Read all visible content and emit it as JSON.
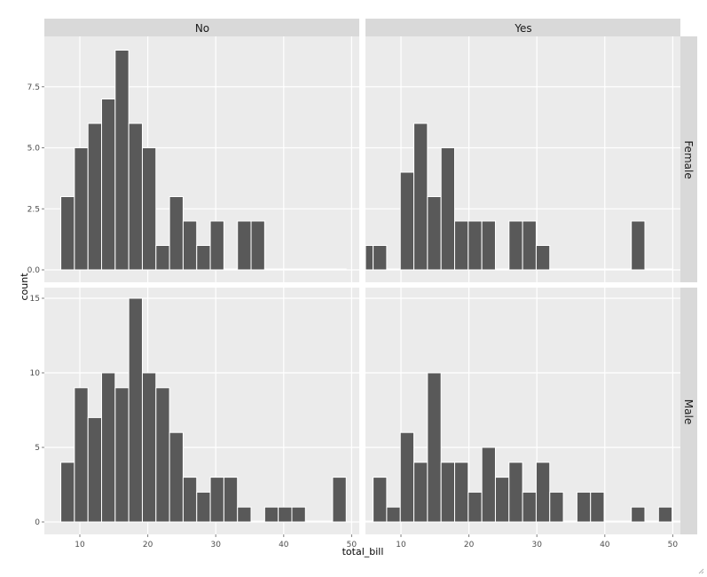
{
  "chart_data": {
    "type": "bar",
    "subtype": "faceted histogram",
    "xlabel": "total_bill",
    "ylabel": "count",
    "column_facet_labels": [
      "No",
      "Yes"
    ],
    "row_facet_labels": [
      "Female",
      "Male"
    ],
    "x_ticks": [
      "10",
      "20",
      "30",
      "40",
      "50"
    ],
    "y_ticks_row_female": [
      "0.0",
      "2.5",
      "5.0",
      "7.5"
    ],
    "y_ticks_row_male": [
      "0",
      "5",
      "10",
      "15"
    ],
    "bar_color": "#595959",
    "panel_background": "#ebebeb",
    "strip_background": "#d9d9d9",
    "grid": true,
    "panels": [
      {
        "col": "No",
        "row": "Female",
        "x": [
          8.2,
          10.2,
          12.2,
          14.2,
          16.2,
          18.2,
          20.2,
          22.2,
          24.2,
          26.2,
          28.2,
          30.2,
          32.2,
          34.2,
          36.2,
          38.2,
          40.2,
          42.2,
          44.2,
          46.2,
          48.2
        ],
        "values": [
          3,
          5,
          6,
          7,
          9,
          6,
          5,
          1,
          3,
          2,
          1,
          2,
          0,
          2,
          2,
          0,
          0,
          0,
          0,
          0,
          0
        ]
      },
      {
        "col": "Yes",
        "row": "Female",
        "x": [
          4.9,
          6.9,
          8.9,
          10.9,
          12.9,
          14.9,
          16.9,
          18.9,
          20.9,
          22.9,
          24.9,
          26.9,
          28.9,
          30.9,
          32.9,
          34.9,
          36.9,
          38.9,
          40.9,
          42.9,
          44.9,
          46.9,
          48.9
        ],
        "values": [
          1,
          1,
          0,
          4,
          6,
          3,
          5,
          2,
          2,
          2,
          0,
          2,
          2,
          1,
          0,
          0,
          0,
          0,
          0,
          0,
          2,
          0,
          0
        ]
      },
      {
        "col": "No",
        "row": "Male",
        "x": [
          8.2,
          10.2,
          12.2,
          14.2,
          16.2,
          18.2,
          20.2,
          22.2,
          24.2,
          26.2,
          28.2,
          30.2,
          32.2,
          34.2,
          36.2,
          38.2,
          40.2,
          42.2,
          44.2,
          46.2,
          48.2
        ],
        "values": [
          4,
          9,
          7,
          10,
          9,
          15,
          10,
          9,
          6,
          3,
          2,
          3,
          3,
          1,
          0,
          1,
          1,
          1,
          0,
          0,
          3
        ]
      },
      {
        "col": "Yes",
        "row": "Male",
        "x": [
          4.9,
          6.9,
          8.9,
          10.9,
          12.9,
          14.9,
          16.9,
          18.9,
          20.9,
          22.9,
          24.9,
          26.9,
          28.9,
          30.9,
          32.9,
          34.9,
          36.9,
          38.9,
          40.9,
          42.9,
          44.9,
          46.9,
          48.9,
          50.9
        ],
        "values": [
          0,
          3,
          1,
          6,
          4,
          10,
          4,
          4,
          2,
          5,
          3,
          4,
          2,
          4,
          2,
          0,
          2,
          2,
          0,
          0,
          1,
          0,
          1,
          0
        ]
      }
    ]
  }
}
